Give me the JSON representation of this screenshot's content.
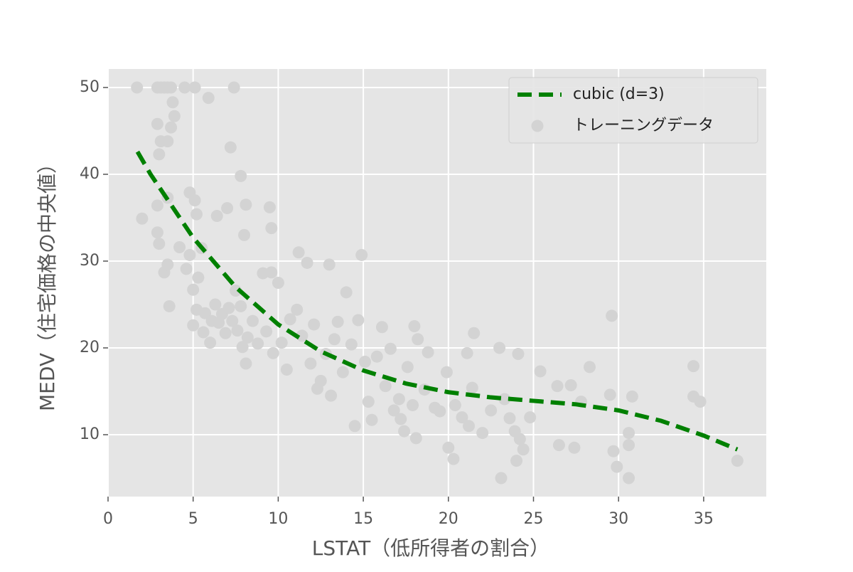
{
  "chart_data": {
    "type": "scatter",
    "xlabel": "LSTAT（低所得者の割合）",
    "ylabel": "MEDV（住宅価格の中央値）",
    "xlim": [
      0,
      38.68
    ],
    "ylim": [
      2.87,
      52.13
    ],
    "xticks": [
      0,
      5,
      10,
      15,
      20,
      25,
      30,
      35
    ],
    "yticks": [
      10,
      20,
      30,
      40,
      50
    ],
    "grid": true,
    "legend": "upper right",
    "series": [
      {
        "name": "cubic (d=3)",
        "color": "#008000",
        "type": "line",
        "x": [
          1.73,
          2.5,
          5,
          7.5,
          10,
          12.5,
          15,
          17.5,
          20,
          22.5,
          25,
          27.5,
          30,
          32.5,
          35,
          36.98
        ],
        "values": [
          42.6,
          40.0,
          32.7,
          27.0,
          22.7,
          19.6,
          17.4,
          15.9,
          14.9,
          14.3,
          13.9,
          13.5,
          12.8,
          11.6,
          9.9,
          8.3
        ]
      },
      {
        "name": "トレーニングデータ",
        "color": "#d3d3d3",
        "type": "scatter",
        "x": [
          1.7,
          2.9,
          3.1,
          3.3,
          3.5,
          3.7,
          4.5,
          5.1,
          7.4,
          5.9,
          3.8,
          3.9,
          2.9,
          3.7,
          3.1,
          3.5,
          3.0,
          7.2,
          7.8,
          2.0,
          2.9,
          3.5,
          4.8,
          5.1,
          5.2,
          6.4,
          7.0,
          8.1,
          9.5,
          9.6,
          8.0,
          2.9,
          3.0,
          3.3,
          3.5,
          3.6,
          4.2,
          4.6,
          4.8,
          5.0,
          5.3,
          5.5,
          5.7,
          5.2,
          5.0,
          5.6,
          6.0,
          6.1,
          6.3,
          6.5,
          6.7,
          6.9,
          7.1,
          7.3,
          7.5,
          7.6,
          7.8,
          7.9,
          8.1,
          8.2,
          8.5,
          8.8,
          9.1,
          9.3,
          9.6,
          9.7,
          10.0,
          10.2,
          10.5,
          10.7,
          11.1,
          11.2,
          11.4,
          11.7,
          11.9,
          12.1,
          12.3,
          12.5,
          12.8,
          13.0,
          13.1,
          13.3,
          13.5,
          13.8,
          14.0,
          14.3,
          14.5,
          14.7,
          14.9,
          15.1,
          15.3,
          15.5,
          15.8,
          16.1,
          16.3,
          16.6,
          16.8,
          17.1,
          17.2,
          17.4,
          17.6,
          17.9,
          18.0,
          18.2,
          18.1,
          18.6,
          18.8,
          19.2,
          19.5,
          19.9,
          20.0,
          20.3,
          20.4,
          20.8,
          21.1,
          21.4,
          21.5,
          21.2,
          22.0,
          22.5,
          23.0,
          23.1,
          23.3,
          23.6,
          23.9,
          24.1,
          24.2,
          24.4,
          24.0,
          24.8,
          25.4,
          26.4,
          26.5,
          27.2,
          27.4,
          27.8,
          28.3,
          29.5,
          29.6,
          29.7,
          29.9,
          30.6,
          30.6,
          30.6,
          30.8,
          34.4,
          34.4,
          34.8,
          36.98
        ],
        "values": [
          50,
          50,
          50,
          50,
          50,
          50,
          50,
          50,
          50,
          48.8,
          48.3,
          46.7,
          45.8,
          45.4,
          43.8,
          43.8,
          42.3,
          43.1,
          39.8,
          34.9,
          36.4,
          37.3,
          37.9,
          37.0,
          35.4,
          35.2,
          36.1,
          36.5,
          36.2,
          33.8,
          33.0,
          33.3,
          32.0,
          28.7,
          29.6,
          24.8,
          31.6,
          29.1,
          30.7,
          26.7,
          28.1,
          31.5,
          24.0,
          24.4,
          22.6,
          21.8,
          20.6,
          23.1,
          25.0,
          22.9,
          23.9,
          21.7,
          24.6,
          23.1,
          26.6,
          22.0,
          24.8,
          20.1,
          18.2,
          21.2,
          23.1,
          20.5,
          28.6,
          21.9,
          28.7,
          19.4,
          27.5,
          20.6,
          17.5,
          23.3,
          24.4,
          31.0,
          21.4,
          29.8,
          18.2,
          22.7,
          15.3,
          16.2,
          19.3,
          29.6,
          14.5,
          21.0,
          23.0,
          17.2,
          26.4,
          20.4,
          11.0,
          23.2,
          30.7,
          18.4,
          13.8,
          11.7,
          19.0,
          22.4,
          15.6,
          19.9,
          12.8,
          14.1,
          11.8,
          10.4,
          17.8,
          13.4,
          22.5,
          21.0,
          9.6,
          15.2,
          19.5,
          13.1,
          12.7,
          17.2,
          8.5,
          7.2,
          13.4,
          12.0,
          19.4,
          15.4,
          21.7,
          11.0,
          10.2,
          12.8,
          20.0,
          5.0,
          14.1,
          11.9,
          10.4,
          19.3,
          9.5,
          8.3,
          7.0,
          12.0,
          17.3,
          15.6,
          8.8,
          15.7,
          8.5,
          13.8,
          17.8,
          14.6,
          23.7,
          8.1,
          6.3,
          5.0,
          10.2,
          8.8,
          14.4,
          17.9,
          14.4,
          13.8,
          7.0
        ]
      }
    ]
  }
}
